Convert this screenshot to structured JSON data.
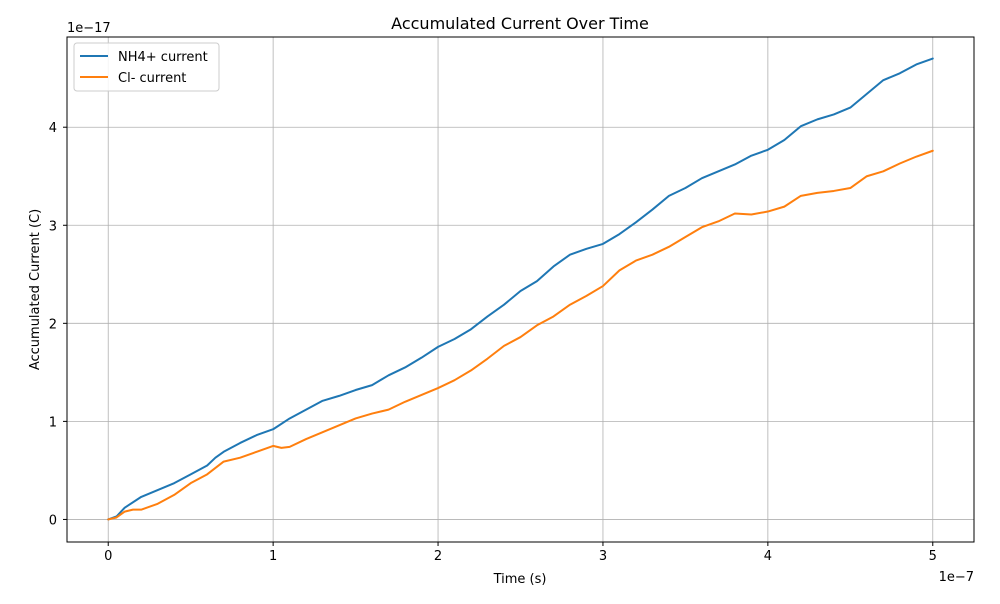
{
  "chart_data": {
    "type": "line",
    "title": "Accumulated Current Over Time",
    "xlabel": "Time (s)",
    "ylabel": "Accumulated Current (C)",
    "x_offset_label": "1e−7",
    "y_offset_label": "1e−17",
    "xlim": [
      -0.25,
      5.25
    ],
    "ylim": [
      -0.23,
      4.92
    ],
    "x_ticks": [
      0,
      1,
      2,
      3,
      4,
      5
    ],
    "x_tick_labels": [
      "0",
      "1",
      "2",
      "3",
      "4",
      "5"
    ],
    "y_ticks": [
      0,
      1,
      2,
      3,
      4
    ],
    "y_tick_labels": [
      "0",
      "1",
      "2",
      "3",
      "4"
    ],
    "grid": true,
    "legend_position": "upper-left",
    "series": [
      {
        "name": "NH4+ current",
        "color": "#1f77b4",
        "x": [
          0,
          0.05,
          0.1,
          0.2,
          0.3,
          0.4,
          0.5,
          0.6,
          0.65,
          0.7,
          0.8,
          0.9,
          1.0,
          1.1,
          1.2,
          1.3,
          1.4,
          1.5,
          1.6,
          1.7,
          1.8,
          1.9,
          2.0,
          2.1,
          2.2,
          2.3,
          2.4,
          2.5,
          2.6,
          2.7,
          2.8,
          2.9,
          3.0,
          3.1,
          3.2,
          3.3,
          3.4,
          3.5,
          3.6,
          3.7,
          3.8,
          3.9,
          4.0,
          4.1,
          4.2,
          4.3,
          4.4,
          4.5,
          4.6,
          4.7,
          4.8,
          4.9,
          5.0
        ],
        "y": [
          0.0,
          0.03,
          0.12,
          0.23,
          0.3,
          0.37,
          0.46,
          0.55,
          0.63,
          0.69,
          0.78,
          0.86,
          0.92,
          1.03,
          1.12,
          1.21,
          1.26,
          1.32,
          1.37,
          1.47,
          1.55,
          1.65,
          1.76,
          1.84,
          1.94,
          2.07,
          2.19,
          2.33,
          2.43,
          2.58,
          2.7,
          2.76,
          2.81,
          2.91,
          3.03,
          3.16,
          3.3,
          3.38,
          3.48,
          3.55,
          3.62,
          3.71,
          3.77,
          3.87,
          4.01,
          4.08,
          4.13,
          4.2,
          4.34,
          4.48,
          4.55,
          4.64,
          4.7
        ]
      },
      {
        "name": "Cl- current",
        "color": "#ff7f0e",
        "x": [
          0,
          0.05,
          0.1,
          0.15,
          0.2,
          0.3,
          0.4,
          0.5,
          0.6,
          0.7,
          0.8,
          0.9,
          1.0,
          1.05,
          1.1,
          1.2,
          1.3,
          1.4,
          1.5,
          1.6,
          1.7,
          1.8,
          1.9,
          2.0,
          2.1,
          2.2,
          2.3,
          2.4,
          2.5,
          2.6,
          2.7,
          2.8,
          2.9,
          3.0,
          3.1,
          3.2,
          3.3,
          3.4,
          3.5,
          3.6,
          3.7,
          3.8,
          3.9,
          4.0,
          4.1,
          4.2,
          4.3,
          4.4,
          4.5,
          4.6,
          4.7,
          4.8,
          4.9,
          5.0
        ],
        "y": [
          0.0,
          0.02,
          0.08,
          0.1,
          0.1,
          0.16,
          0.25,
          0.37,
          0.46,
          0.59,
          0.63,
          0.69,
          0.75,
          0.73,
          0.74,
          0.82,
          0.89,
          0.96,
          1.03,
          1.08,
          1.12,
          1.2,
          1.27,
          1.34,
          1.42,
          1.52,
          1.64,
          1.77,
          1.86,
          1.98,
          2.07,
          2.19,
          2.28,
          2.38,
          2.54,
          2.64,
          2.7,
          2.78,
          2.88,
          2.98,
          3.04,
          3.12,
          3.11,
          3.14,
          3.19,
          3.3,
          3.33,
          3.35,
          3.38,
          3.5,
          3.55,
          3.63,
          3.7,
          3.76
        ]
      }
    ]
  }
}
